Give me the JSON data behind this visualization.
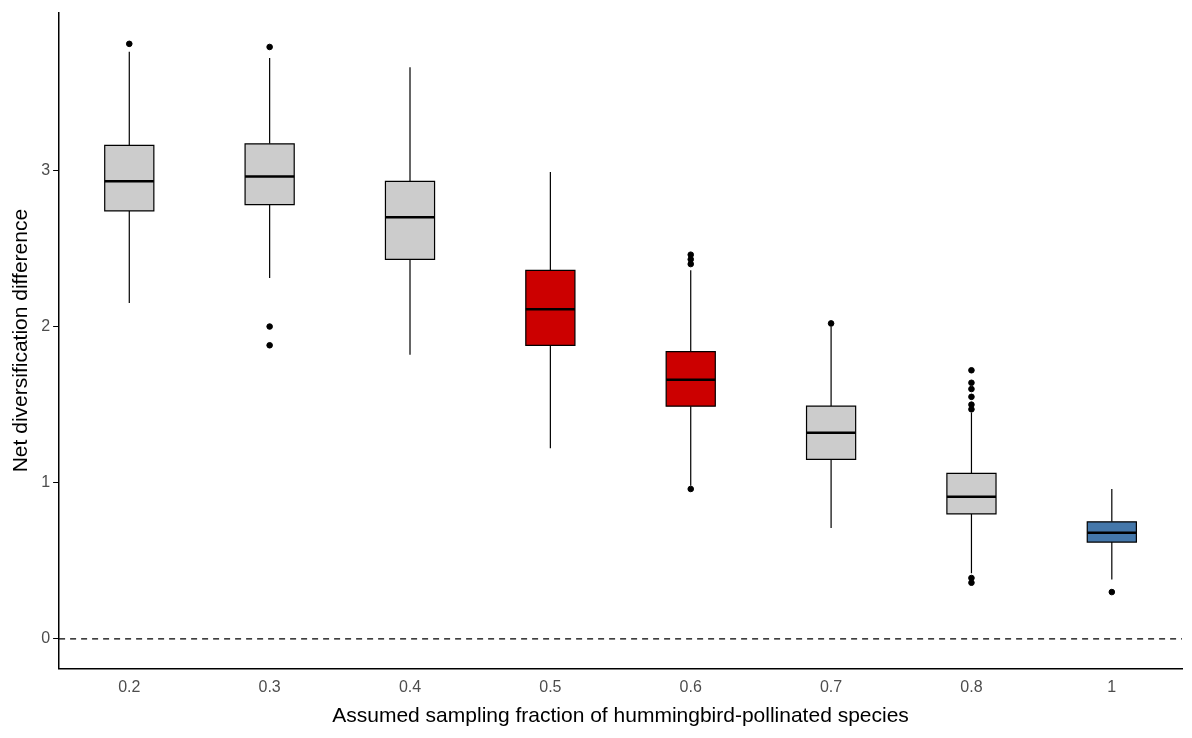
{
  "chart_data": {
    "type": "box",
    "xlabel": "Assumed sampling fraction of hummingbird-pollinated species",
    "ylabel": "Net diversification difference",
    "categories": [
      "0.2",
      "0.3",
      "0.4",
      "0.5",
      "0.6",
      "0.7",
      "0.8",
      "1"
    ],
    "colors": [
      "#cccccc",
      "#cccccc",
      "#cccccc",
      "#cc0000",
      "#cc0000",
      "#cccccc",
      "#cccccc",
      "#4477aa"
    ],
    "boxes": [
      {
        "low": 2.15,
        "q1": 2.74,
        "median": 2.93,
        "q3": 3.16,
        "high": 3.76,
        "outliers": [
          3.81
        ]
      },
      {
        "low": 2.31,
        "q1": 2.78,
        "median": 2.96,
        "q3": 3.17,
        "high": 3.72,
        "outliers": [
          3.79,
          2.0,
          1.88
        ]
      },
      {
        "low": 1.82,
        "q1": 2.43,
        "median": 2.7,
        "q3": 2.93,
        "high": 3.66
      },
      {
        "low": 1.22,
        "q1": 1.88,
        "median": 2.11,
        "q3": 2.36,
        "high": 2.99
      },
      {
        "low": 0.98,
        "q1": 1.49,
        "median": 1.66,
        "q3": 1.84,
        "high": 2.36,
        "outliers": [
          2.46,
          2.43,
          2.4,
          0.96
        ]
      },
      {
        "low": 0.71,
        "q1": 1.15,
        "median": 1.32,
        "q3": 1.49,
        "high": 2.0,
        "outliers": [
          2.02
        ]
      },
      {
        "low": 0.42,
        "q1": 0.8,
        "median": 0.91,
        "q3": 1.06,
        "high": 1.45,
        "outliers": [
          1.72,
          1.64,
          1.6,
          1.55,
          1.5,
          1.47,
          0.39,
          0.36
        ]
      },
      {
        "low": 0.38,
        "q1": 0.62,
        "median": 0.68,
        "q3": 0.75,
        "high": 0.96,
        "outliers": [
          0.3
        ]
      }
    ],
    "ylim": [
      -0.19,
      4.01
    ],
    "yticks": [
      0,
      1,
      2,
      3
    ],
    "ref_lines": [
      {
        "axis": "y",
        "value": 0,
        "line_style": "dashed",
        "color": "#000000"
      }
    ],
    "grid": false,
    "legend": false
  }
}
